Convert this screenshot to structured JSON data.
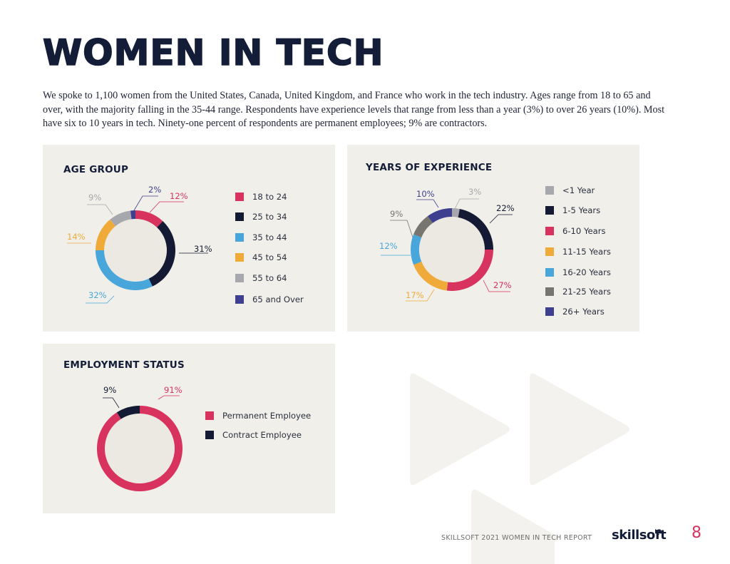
{
  "page": {
    "title": "WOMEN IN TECH",
    "intro": "We spoke to 1,100 women from the United States, Canada, United Kingdom, and France who work in the tech industry. Ages range from 18 to 65 and over, with the majority falling in the 35-44 range. Respondents have experience levels that range from less than a year (3%) to over 26 years (10%). Most have six to 10 years in tech. Ninety-one percent of respondents are permanent employees; 9% are contractors.",
    "footer": "SKILLSOFT 2021 WOMEN IN TECH REPORT",
    "logo_text": "skillsoft",
    "logo_icon": "fast-forward-icon",
    "page_number": "8"
  },
  "chart_data": [
    {
      "type": "pie",
      "title": "AGE GROUP",
      "categories": [
        "18 to 24",
        "25 to 34",
        "35 to 44",
        "45 to 54",
        "55 to 64",
        "65 and Over"
      ],
      "values": [
        12,
        31,
        32,
        14,
        9,
        2
      ],
      "labels": [
        "12%",
        "31%",
        "32%",
        "14%",
        "9%",
        "2%"
      ],
      "colors": [
        "#d8325e",
        "#141a33",
        "#48a6db",
        "#efaa3a",
        "#a7a8ae",
        "#3f3f8f"
      ],
      "legend": "right",
      "donut": true
    },
    {
      "type": "pie",
      "title": "YEARS OF EXPERIENCE",
      "categories": [
        "<1 Year",
        "1-5 Years",
        "6-10 Years",
        "11-15 Years",
        "16-20 Years",
        "21-25 Years",
        "26+ Years"
      ],
      "values": [
        3,
        22,
        27,
        17,
        12,
        9,
        10
      ],
      "labels": [
        "3%",
        "22%",
        "27%",
        "17%",
        "12%",
        "9%",
        "10%"
      ],
      "colors": [
        "#a7a8ae",
        "#141a33",
        "#d8325e",
        "#efaa3a",
        "#48a6db",
        "#76766f",
        "#3f3f8f"
      ],
      "legend": "right",
      "donut": true
    },
    {
      "type": "pie",
      "title": "EMPLOYMENT STATUS",
      "categories": [
        "Permanent Employee",
        "Contract Employee"
      ],
      "values": [
        91,
        9
      ],
      "labels": [
        "91%",
        "9%"
      ],
      "colors": [
        "#d8325e",
        "#141a33"
      ],
      "legend": "right",
      "donut": true
    }
  ]
}
